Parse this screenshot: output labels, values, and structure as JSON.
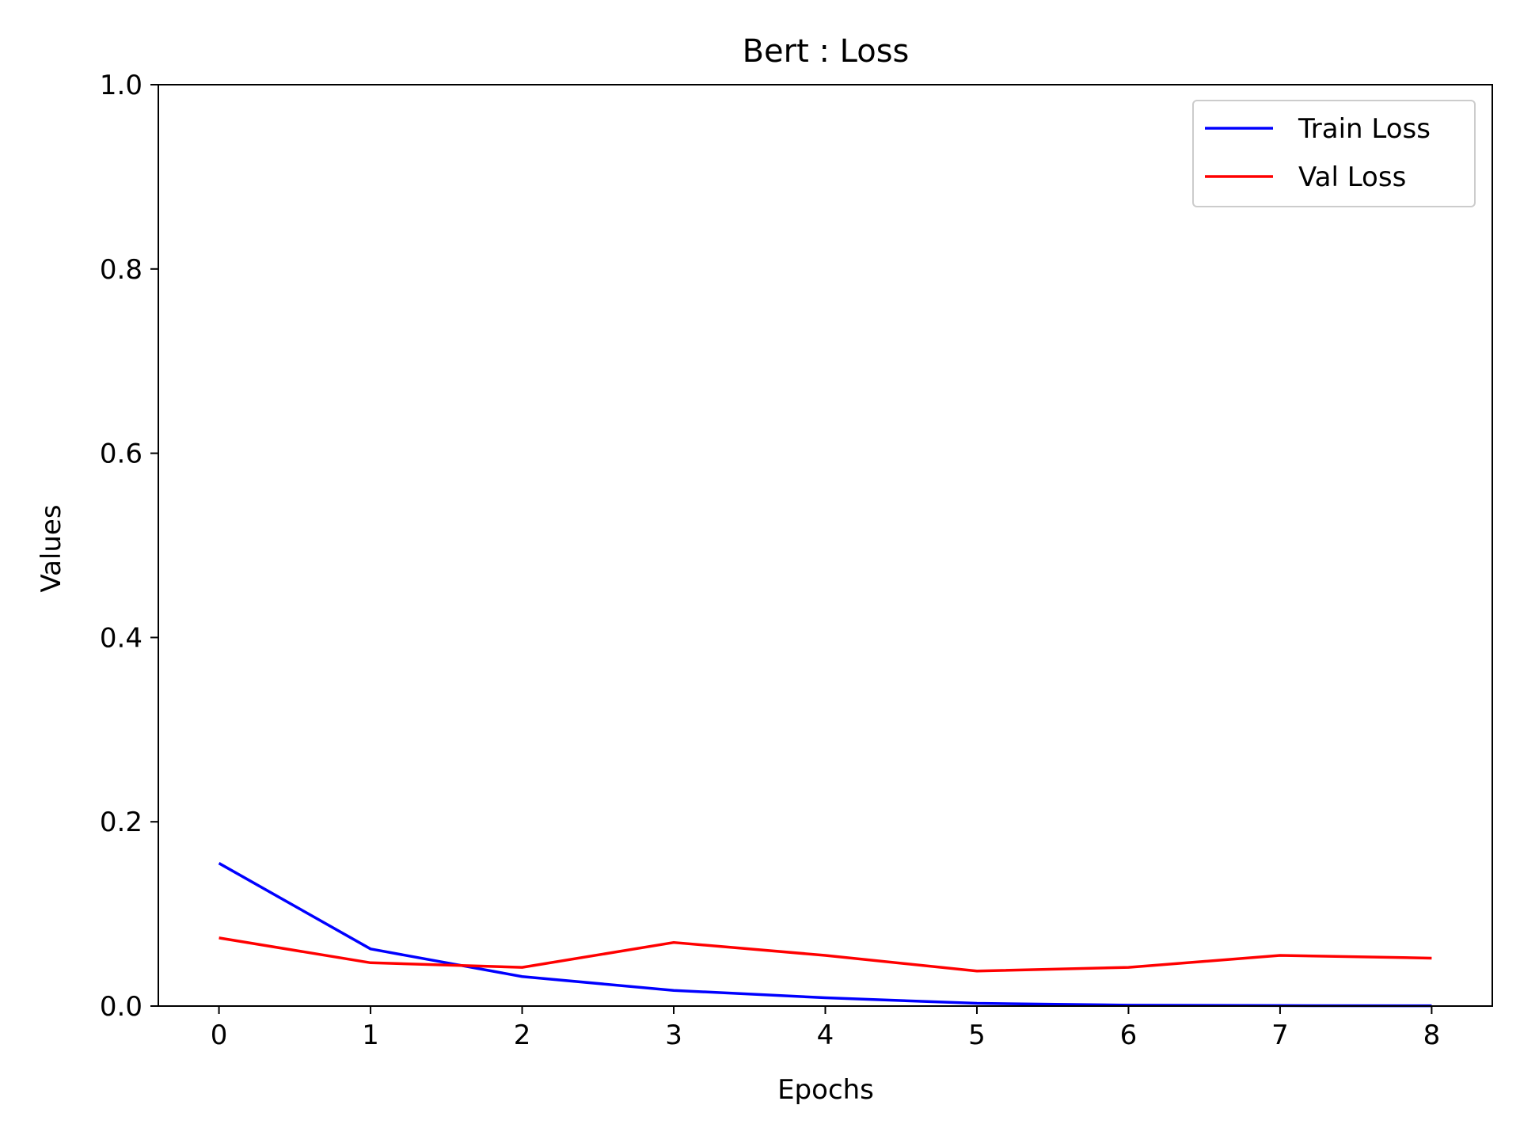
{
  "chart_data": {
    "type": "line",
    "title": "Bert : Loss",
    "xlabel": "Epochs",
    "ylabel": "Values",
    "xlim": [
      -0.4,
      8.4
    ],
    "ylim": [
      0.0,
      1.0
    ],
    "xticks": [
      0,
      1,
      2,
      3,
      4,
      5,
      6,
      7,
      8
    ],
    "xtick_labels": [
      "0",
      "1",
      "2",
      "3",
      "4",
      "5",
      "6",
      "7",
      "8"
    ],
    "yticks": [
      0.0,
      0.2,
      0.4,
      0.6,
      0.8,
      1.0
    ],
    "ytick_labels": [
      "0.0",
      "0.2",
      "0.4",
      "0.6",
      "0.8",
      "1.0"
    ],
    "grid": false,
    "legend": "top-right",
    "x": [
      0,
      1,
      2,
      3,
      4,
      5,
      6,
      7,
      8
    ],
    "series": [
      {
        "name": "Train Loss",
        "color": "#0000ff",
        "values": [
          0.155,
          0.062,
          0.032,
          0.017,
          0.009,
          0.003,
          0.001,
          0.0005,
          0.0003
        ]
      },
      {
        "name": "Val Loss",
        "color": "#ff0000",
        "values": [
          0.074,
          0.047,
          0.042,
          0.069,
          0.055,
          0.038,
          0.042,
          0.055,
          0.052
        ]
      }
    ]
  }
}
